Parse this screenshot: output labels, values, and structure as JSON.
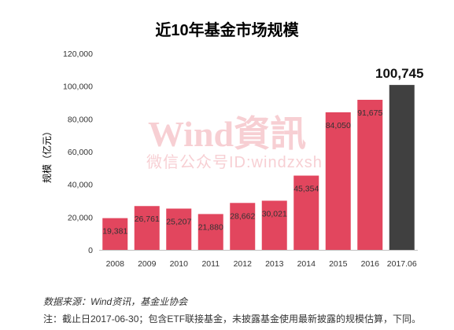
{
  "chart_data": {
    "type": "bar",
    "title": "近10年基金市场规模",
    "xlabel": "",
    "ylabel": "规模（亿元）",
    "categories": [
      "2008",
      "2009",
      "2010",
      "2011",
      "2012",
      "2013",
      "2014",
      "2015",
      "2016",
      "2017.06"
    ],
    "values": [
      19381,
      26761,
      25207,
      21880,
      28662,
      30021,
      45354,
      84050,
      91675,
      100745
    ],
    "data_labels": [
      "19,381",
      "26,761",
      "25,207",
      "21,880",
      "28,662",
      "30,021",
      "45,354",
      "84,050",
      "91,675",
      "100,745"
    ],
    "yticks": [
      0,
      20000,
      40000,
      60000,
      80000,
      100000,
      120000
    ],
    "ytick_labels": [
      "0",
      "20,000",
      "40,000",
      "60,000",
      "80,000",
      "100,000",
      "120,000"
    ],
    "ylim": [
      0,
      120000
    ],
    "grid": false,
    "colors": {
      "bar_colors": [
        "#E2465E",
        "#E2465E",
        "#E2465E",
        "#E2465E",
        "#E2465E",
        "#E2465E",
        "#E2465E",
        "#E2465E",
        "#E2465E",
        "#404040"
      ],
      "axis": "#BFBFBF",
      "watermark": "#EE8F99"
    }
  },
  "watermark": {
    "brand": "Wind資訊",
    "wechat": "微信公众号ID:windzxsh"
  },
  "footnotes": {
    "source": "数据来源：Wind资讯，基金业协会",
    "note": "注：截止日2017-06-30；包含ETF联接基金，未披露基金使用最新披露的规模估算，下同。"
  }
}
